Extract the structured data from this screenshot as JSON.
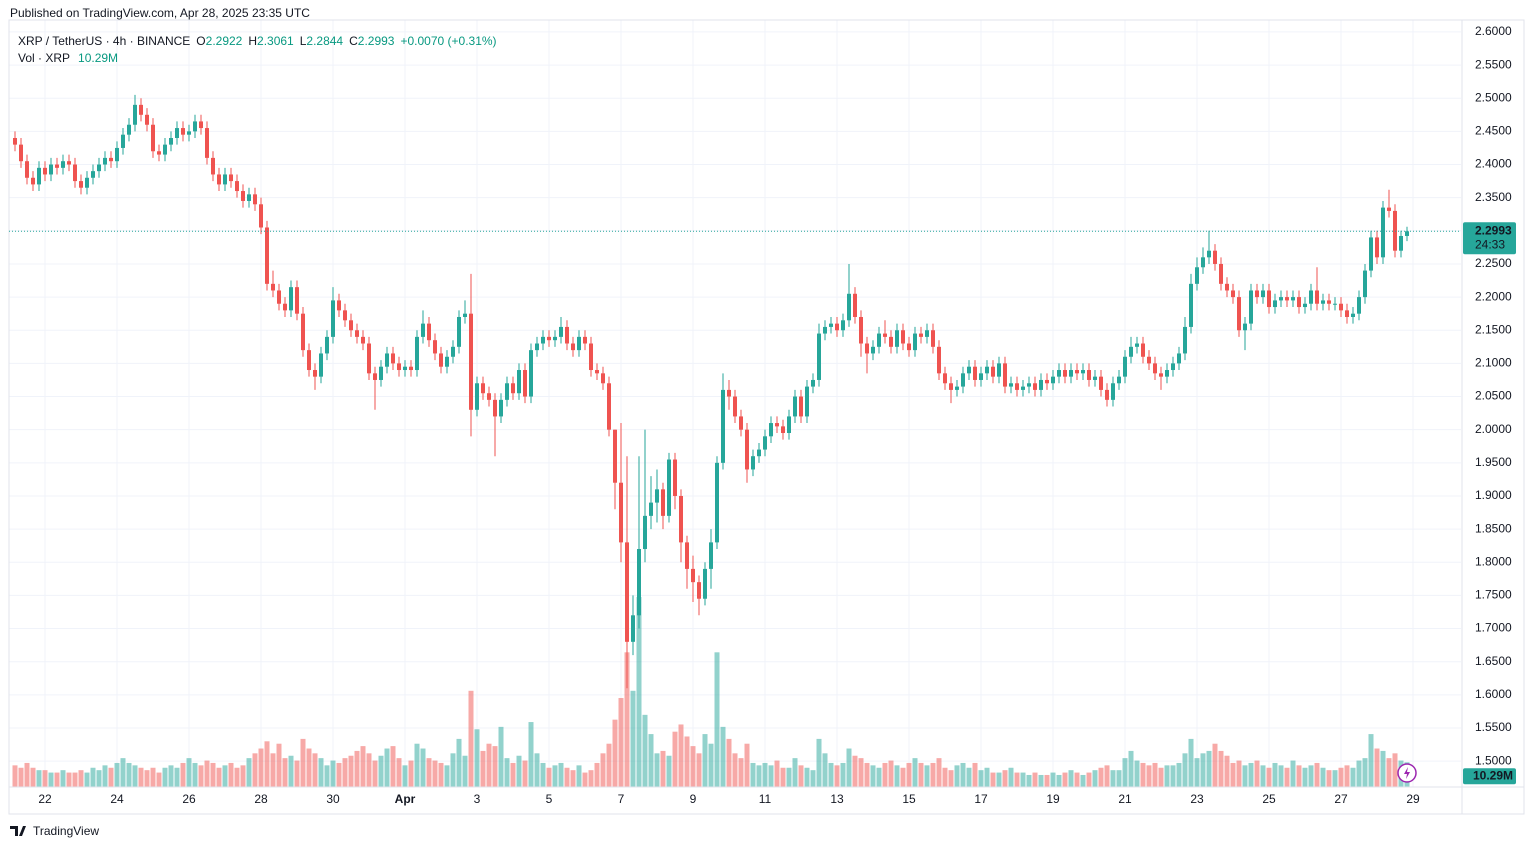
{
  "publisher": "Published on TradingView.com, Apr 28, 2025 23:35 UTC",
  "brand": "TradingView",
  "chart_data": {
    "type": "candlestick",
    "title": "XRP / TetherUS · 4h · BINANCE",
    "ohlc_labels": [
      "O",
      "H",
      "L",
      "C"
    ],
    "change_label": "+0.0070 (+0.31%)",
    "volume_title": "Vol · XRP",
    "volume_last_label": "10.29M",
    "countdown": "24:33",
    "up_color": "#26a69a",
    "down_color": "#ef5350",
    "volume_up_color": "#26a69a80",
    "volume_down_color": "#ef535080",
    "grid": true,
    "xlim": [
      -1,
      241
    ],
    "ylim": [
      1.461,
      2.618
    ],
    "xticks": [
      {
        "value": 5,
        "label": "22"
      },
      {
        "value": 17,
        "label": "24"
      },
      {
        "value": 29,
        "label": "26"
      },
      {
        "value": 41,
        "label": "28"
      },
      {
        "value": 53,
        "label": "30"
      },
      {
        "value": 65,
        "label": "Apr"
      },
      {
        "value": 77,
        "label": "3"
      },
      {
        "value": 89,
        "label": "5"
      },
      {
        "value": 101,
        "label": "7"
      },
      {
        "value": 113,
        "label": "9"
      },
      {
        "value": 125,
        "label": "11"
      },
      {
        "value": 137,
        "label": "13"
      },
      {
        "value": 149,
        "label": "15"
      },
      {
        "value": 161,
        "label": "17"
      },
      {
        "value": 173,
        "label": "19"
      },
      {
        "value": 185,
        "label": "21"
      },
      {
        "value": 197,
        "label": "23"
      },
      {
        "value": 209,
        "label": "25"
      },
      {
        "value": 221,
        "label": "27"
      },
      {
        "value": 233,
        "label": "29"
      }
    ],
    "yticks": [
      {
        "value": 1.5,
        "label": "1.5000"
      },
      {
        "value": 1.55,
        "label": "1.5500"
      },
      {
        "value": 1.6,
        "label": "1.6000"
      },
      {
        "value": 1.65,
        "label": "1.6500"
      },
      {
        "value": 1.7,
        "label": "1.7000"
      },
      {
        "value": 1.75,
        "label": "1.7500"
      },
      {
        "value": 1.8,
        "label": "1.8000"
      },
      {
        "value": 1.85,
        "label": "1.8500"
      },
      {
        "value": 1.9,
        "label": "1.9000"
      },
      {
        "value": 1.95,
        "label": "1.9500"
      },
      {
        "value": 2.0,
        "label": "2.0000"
      },
      {
        "value": 2.05,
        "label": "2.0500"
      },
      {
        "value": 2.1,
        "label": "2.1000"
      },
      {
        "value": 2.15,
        "label": "2.1500"
      },
      {
        "value": 2.2,
        "label": "2.2000"
      },
      {
        "value": 2.25,
        "label": "2.2500"
      },
      {
        "value": 2.3,
        "label": "2.3000"
      },
      {
        "value": 2.35,
        "label": "2.3500"
      },
      {
        "value": 2.4,
        "label": "2.4000"
      },
      {
        "value": 2.45,
        "label": "2.4500"
      },
      {
        "value": 2.5,
        "label": "2.5000"
      },
      {
        "value": 2.55,
        "label": "2.5500"
      },
      {
        "value": 2.6,
        "label": "2.6000"
      }
    ],
    "open": [
      2.44,
      2.43,
      2.405,
      2.38,
      2.37,
      2.395,
      2.385,
      2.4,
      2.395,
      2.405,
      2.4,
      2.375,
      2.365,
      2.38,
      2.39,
      2.4,
      2.41,
      2.405,
      2.425,
      2.445,
      2.46,
      2.49,
      2.475,
      2.46,
      2.42,
      2.415,
      2.43,
      2.44,
      2.455,
      2.445,
      2.45,
      2.465,
      2.455,
      2.41,
      2.385,
      2.37,
      2.385,
      2.375,
      2.36,
      2.345,
      2.355,
      2.34,
      2.305,
      2.22,
      2.21,
      2.19,
      2.18,
      2.215,
      2.175,
      2.12,
      2.09,
      2.08,
      2.115,
      2.14,
      2.195,
      2.18,
      2.165,
      2.15,
      2.14,
      2.13,
      2.085,
      2.075,
      2.095,
      2.115,
      2.1,
      2.09,
      2.095,
      2.09,
      2.14,
      2.16,
      2.135,
      2.115,
      2.095,
      2.11,
      2.125,
      2.17,
      2.175,
      2.03,
      2.07,
      2.055,
      2.045,
      2.02,
      2.045,
      2.07,
      2.055,
      2.09,
      2.05,
      2.12,
      2.13,
      2.14,
      2.135,
      2.14,
      2.155,
      2.13,
      2.12,
      2.14,
      2.13,
      2.09,
      2.085,
      2.07,
      2.0,
      1.92,
      1.83,
      1.68,
      1.72,
      1.82,
      1.87,
      1.89,
      1.91,
      1.87,
      1.955,
      1.9,
      1.83,
      1.79,
      1.77,
      1.745,
      1.79,
      1.83,
      1.95,
      2.06,
      2.05,
      2.02,
      2.0,
      1.94,
      1.96,
      1.97,
      1.99,
      2.01,
      2.005,
      1.995,
      2.02,
      2.05,
      2.02,
      2.065,
      2.075,
      2.145,
      2.155,
      2.16,
      2.15,
      2.165,
      2.205,
      2.17,
      2.13,
      2.115,
      2.125,
      2.145,
      2.14,
      2.125,
      2.15,
      2.13,
      2.12,
      2.145,
      2.14,
      2.15,
      2.125,
      2.085,
      2.07,
      2.06,
      2.065,
      2.085,
      2.095,
      2.075,
      2.085,
      2.095,
      2.08,
      2.1,
      2.065,
      2.07,
      2.06,
      2.065,
      2.07,
      2.06,
      2.075,
      2.07,
      2.08,
      2.09,
      2.08,
      2.09,
      2.085,
      2.09,
      2.075,
      2.08,
      2.06,
      2.045,
      2.07,
      2.08,
      2.11,
      2.125,
      2.13,
      2.11,
      2.1,
      2.085,
      2.08,
      2.09,
      2.1,
      2.115,
      2.155,
      2.22,
      2.245,
      2.26,
      2.27,
      2.25,
      2.22,
      2.21,
      2.2,
      2.15,
      2.16,
      2.21,
      2.2,
      2.21,
      2.185,
      2.195,
      2.2,
      2.195,
      2.2,
      2.185,
      2.19,
      2.21,
      2.19,
      2.195,
      2.19,
      2.19,
      2.18,
      2.17,
      2.175,
      2.2,
      2.24,
      2.29,
      2.26,
      2.335,
      2.33,
      2.27,
      2.2922
    ],
    "high": [
      2.45,
      2.44,
      2.415,
      2.39,
      2.405,
      2.405,
      2.41,
      2.41,
      2.415,
      2.415,
      2.41,
      2.385,
      2.39,
      2.4,
      2.41,
      2.42,
      2.42,
      2.435,
      2.455,
      2.47,
      2.505,
      2.5,
      2.485,
      2.47,
      2.43,
      2.44,
      2.45,
      2.465,
      2.465,
      2.46,
      2.475,
      2.475,
      2.465,
      2.42,
      2.395,
      2.395,
      2.395,
      2.385,
      2.37,
      2.365,
      2.365,
      2.35,
      2.315,
      2.24,
      2.22,
      2.2,
      2.225,
      2.225,
      2.185,
      2.13,
      2.1,
      2.125,
      2.15,
      2.215,
      2.205,
      2.19,
      2.175,
      2.16,
      2.15,
      2.14,
      2.095,
      2.105,
      2.125,
      2.125,
      2.11,
      2.105,
      2.105,
      2.15,
      2.18,
      2.17,
      2.145,
      2.125,
      2.12,
      2.135,
      2.18,
      2.195,
      2.235,
      2.08,
      2.08,
      2.065,
      2.055,
      2.055,
      2.08,
      2.08,
      2.1,
      2.1,
      2.13,
      2.14,
      2.15,
      2.15,
      2.15,
      2.17,
      2.165,
      2.14,
      2.15,
      2.15,
      2.14,
      2.1,
      2.095,
      2.08,
      2.0,
      2.01,
      1.96,
      1.75,
      1.96,
      2.0,
      1.93,
      1.94,
      1.92,
      1.965,
      1.965,
      1.91,
      1.84,
      1.81,
      1.78,
      1.8,
      1.85,
      1.96,
      2.085,
      2.075,
      2.06,
      2.03,
      2.01,
      1.97,
      1.98,
      2.0,
      2.02,
      2.02,
      2.015,
      2.03,
      2.06,
      2.06,
      2.075,
      2.085,
      2.16,
      2.165,
      2.17,
      2.17,
      2.175,
      2.25,
      2.215,
      2.18,
      2.14,
      2.135,
      2.155,
      2.165,
      2.15,
      2.16,
      2.16,
      2.14,
      2.155,
      2.155,
      2.16,
      2.16,
      2.135,
      2.095,
      2.08,
      2.075,
      2.095,
      2.105,
      2.105,
      2.095,
      2.105,
      2.105,
      2.11,
      2.11,
      2.08,
      2.08,
      2.075,
      2.08,
      2.08,
      2.085,
      2.085,
      2.09,
      2.1,
      2.1,
      2.1,
      2.1,
      2.1,
      2.1,
      2.09,
      2.09,
      2.07,
      2.08,
      2.09,
      2.12,
      2.14,
      2.14,
      2.14,
      2.12,
      2.11,
      2.095,
      2.1,
      2.11,
      2.125,
      2.17,
      2.235,
      2.26,
      2.275,
      2.3,
      2.28,
      2.26,
      2.23,
      2.22,
      2.21,
      2.17,
      2.22,
      2.22,
      2.22,
      2.22,
      2.205,
      2.21,
      2.21,
      2.21,
      2.21,
      2.2,
      2.22,
      2.245,
      2.205,
      2.205,
      2.2,
      2.2,
      2.19,
      2.185,
      2.21,
      2.25,
      2.3,
      2.3,
      2.345,
      2.362,
      2.34,
      2.3,
      2.3061
    ],
    "low": [
      2.42,
      2.395,
      2.37,
      2.36,
      2.36,
      2.375,
      2.375,
      2.385,
      2.385,
      2.39,
      2.365,
      2.355,
      2.355,
      2.37,
      2.38,
      2.39,
      2.395,
      2.395,
      2.415,
      2.435,
      2.45,
      2.465,
      2.45,
      2.41,
      2.405,
      2.405,
      2.42,
      2.43,
      2.435,
      2.435,
      2.44,
      2.445,
      2.4,
      2.375,
      2.36,
      2.36,
      2.365,
      2.35,
      2.335,
      2.335,
      2.33,
      2.295,
      2.21,
      2.2,
      2.18,
      2.17,
      2.17,
      2.165,
      2.11,
      2.08,
      2.06,
      2.07,
      2.105,
      2.13,
      2.17,
      2.155,
      2.14,
      2.13,
      2.12,
      2.075,
      2.03,
      2.065,
      2.085,
      2.09,
      2.08,
      2.08,
      2.08,
      2.08,
      2.13,
      2.125,
      2.105,
      2.085,
      2.085,
      2.1,
      2.115,
      2.16,
      1.99,
      2.02,
      2.045,
      2.035,
      1.96,
      2.01,
      2.035,
      2.045,
      2.045,
      2.04,
      2.04,
      2.11,
      2.12,
      2.125,
      2.125,
      2.13,
      2.12,
      2.11,
      2.11,
      2.12,
      2.08,
      2.075,
      2.06,
      1.99,
      1.88,
      1.8,
      1.61,
      1.66,
      1.7,
      1.8,
      1.85,
      1.86,
      1.85,
      1.86,
      1.88,
      1.8,
      1.76,
      1.74,
      1.72,
      1.735,
      1.76,
      1.82,
      1.94,
      2.03,
      2.01,
      1.99,
      1.92,
      1.93,
      1.95,
      1.96,
      1.98,
      1.995,
      1.985,
      1.985,
      2.01,
      2.01,
      2.01,
      2.055,
      2.065,
      2.135,
      2.145,
      2.14,
      2.14,
      2.155,
      2.16,
      2.11,
      2.085,
      2.105,
      2.115,
      2.13,
      2.115,
      2.115,
      2.12,
      2.11,
      2.11,
      2.13,
      2.13,
      2.115,
      2.075,
      2.06,
      2.04,
      2.05,
      2.055,
      2.075,
      2.065,
      2.065,
      2.075,
      2.07,
      2.07,
      2.055,
      2.055,
      2.05,
      2.05,
      2.055,
      2.05,
      2.05,
      2.06,
      2.06,
      2.07,
      2.07,
      2.07,
      2.075,
      2.075,
      2.065,
      2.065,
      2.05,
      2.035,
      2.035,
      2.06,
      2.07,
      2.1,
      2.115,
      2.1,
      2.09,
      2.075,
      2.06,
      2.07,
      2.08,
      2.09,
      2.105,
      2.145,
      2.21,
      2.235,
      2.25,
      2.24,
      2.21,
      2.2,
      2.19,
      2.14,
      2.12,
      2.15,
      2.19,
      2.19,
      2.175,
      2.175,
      2.185,
      2.185,
      2.185,
      2.175,
      2.175,
      2.18,
      2.18,
      2.18,
      2.18,
      2.18,
      2.17,
      2.16,
      2.16,
      2.165,
      2.19,
      2.23,
      2.25,
      2.25,
      2.32,
      2.26,
      2.26,
      2.2844
    ],
    "close": [
      2.43,
      2.405,
      2.38,
      2.37,
      2.395,
      2.385,
      2.4,
      2.395,
      2.405,
      2.4,
      2.375,
      2.365,
      2.38,
      2.39,
      2.4,
      2.41,
      2.405,
      2.425,
      2.445,
      2.46,
      2.49,
      2.475,
      2.46,
      2.42,
      2.415,
      2.43,
      2.44,
      2.455,
      2.445,
      2.45,
      2.465,
      2.455,
      2.41,
      2.385,
      2.37,
      2.385,
      2.375,
      2.36,
      2.345,
      2.355,
      2.34,
      2.305,
      2.22,
      2.21,
      2.19,
      2.18,
      2.215,
      2.175,
      2.12,
      2.09,
      2.08,
      2.115,
      2.14,
      2.195,
      2.18,
      2.165,
      2.15,
      2.14,
      2.13,
      2.085,
      2.075,
      2.095,
      2.115,
      2.1,
      2.09,
      2.095,
      2.09,
      2.14,
      2.16,
      2.135,
      2.115,
      2.095,
      2.11,
      2.125,
      2.17,
      2.175,
      2.03,
      2.07,
      2.055,
      2.045,
      2.02,
      2.045,
      2.07,
      2.055,
      2.09,
      2.05,
      2.12,
      2.13,
      2.14,
      2.135,
      2.14,
      2.155,
      2.13,
      2.12,
      2.14,
      2.13,
      2.09,
      2.085,
      2.07,
      2.0,
      1.92,
      1.83,
      1.68,
      1.72,
      1.82,
      1.87,
      1.89,
      1.91,
      1.87,
      1.955,
      1.9,
      1.83,
      1.79,
      1.77,
      1.745,
      1.79,
      1.83,
      1.95,
      2.06,
      2.05,
      2.02,
      2.0,
      1.94,
      1.96,
      1.97,
      1.99,
      2.01,
      2.005,
      1.995,
      2.02,
      2.05,
      2.02,
      2.065,
      2.075,
      2.145,
      2.155,
      2.16,
      2.15,
      2.165,
      2.205,
      2.17,
      2.13,
      2.115,
      2.125,
      2.145,
      2.14,
      2.125,
      2.15,
      2.13,
      2.12,
      2.145,
      2.14,
      2.15,
      2.125,
      2.085,
      2.07,
      2.06,
      2.065,
      2.085,
      2.095,
      2.075,
      2.085,
      2.095,
      2.08,
      2.1,
      2.065,
      2.07,
      2.06,
      2.065,
      2.07,
      2.06,
      2.075,
      2.07,
      2.08,
      2.09,
      2.08,
      2.09,
      2.085,
      2.09,
      2.075,
      2.08,
      2.06,
      2.045,
      2.07,
      2.08,
      2.11,
      2.125,
      2.13,
      2.11,
      2.1,
      2.085,
      2.08,
      2.09,
      2.1,
      2.115,
      2.155,
      2.22,
      2.245,
      2.26,
      2.27,
      2.25,
      2.22,
      2.21,
      2.2,
      2.15,
      2.16,
      2.21,
      2.2,
      2.21,
      2.185,
      2.195,
      2.2,
      2.195,
      2.2,
      2.185,
      2.19,
      2.21,
      2.19,
      2.195,
      2.19,
      2.19,
      2.18,
      2.17,
      2.175,
      2.2,
      2.24,
      2.29,
      2.26,
      2.335,
      2.33,
      2.27,
      2.2922,
      2.2993
    ],
    "volume": [
      9,
      8,
      10,
      8,
      7,
      7,
      6,
      6,
      7,
      6,
      6,
      7,
      6,
      8,
      7,
      9,
      8,
      10,
      12,
      10,
      9,
      8,
      7,
      8,
      6,
      8,
      9,
      8,
      10,
      12,
      10,
      9,
      11,
      10,
      8,
      9,
      10,
      8,
      9,
      12,
      14,
      16,
      19,
      14,
      18,
      12,
      13,
      11,
      20,
      16,
      14,
      12,
      9,
      11,
      10,
      12,
      13,
      15,
      17,
      14,
      11,
      13,
      16,
      17,
      12,
      9,
      11,
      18,
      16,
      12,
      11,
      10,
      9,
      14,
      20,
      13,
      40,
      24,
      15,
      18,
      17,
      25,
      12,
      10,
      13,
      11,
      27,
      14,
      10,
      8,
      9,
      10,
      8,
      7,
      9,
      6,
      7,
      10,
      14,
      18,
      28,
      37,
      56,
      40,
      79,
      30,
      22,
      14,
      15,
      13,
      23,
      26,
      21,
      17,
      14,
      22,
      18,
      56,
      25,
      20,
      14,
      12,
      18,
      10,
      9,
      10,
      9,
      11,
      8,
      8,
      12,
      9,
      8,
      7,
      20,
      14,
      10,
      9,
      10,
      16,
      13,
      12,
      10,
      9,
      8,
      10,
      11,
      9,
      8,
      10,
      12,
      10,
      9,
      10,
      12,
      8,
      7,
      9,
      10,
      8,
      10,
      7,
      8,
      6,
      6,
      7,
      8,
      6,
      6,
      5,
      6,
      5,
      5,
      6,
      5,
      6,
      7,
      6,
      5,
      6,
      7,
      8,
      9,
      7,
      7,
      12,
      15,
      11,
      10,
      9,
      10,
      8,
      9,
      9,
      10,
      14,
      20,
      12,
      14,
      15,
      18,
      15,
      13,
      10,
      11,
      9,
      10,
      11,
      9,
      8,
      10,
      9,
      8,
      11,
      9,
      8,
      9,
      10,
      8,
      7,
      7,
      8,
      9,
      8,
      11,
      12,
      22,
      16,
      15,
      12,
      14,
      11,
      10.29
    ]
  }
}
